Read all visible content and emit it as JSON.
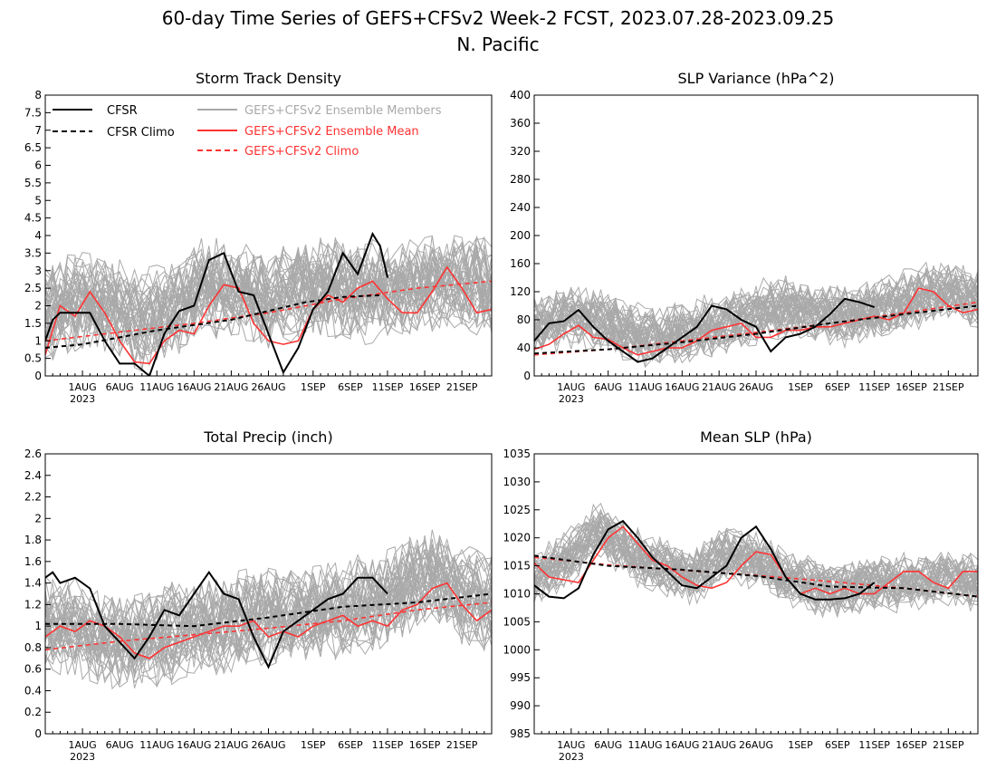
{
  "figure": {
    "title_line1": "60-day Time Series of GEFS+CFSv2 Week-2 FCST, 2023.07.28-2023.09.25",
    "title_line2": "N. Pacific"
  },
  "legend": {
    "cfsr": "CFSR",
    "cfsr_climo": "CFSR Climo",
    "ens_members": "GEFS+CFSv2 Ensemble Members",
    "ens_mean": "GEFS+CFSv2 Ensemble Mean",
    "ens_climo": "GEFS+CFSv2 Climo"
  },
  "colors": {
    "cfsr": "#000000",
    "cfsr_climo": "#000000",
    "ens_members": "#a9a9a9",
    "ens_mean": "#ff3333",
    "ens_climo": "#ff3333"
  },
  "x_axis": {
    "ticks": [
      {
        "label": "1AUG",
        "x": 5
      },
      {
        "label": "6AUG",
        "x": 10
      },
      {
        "label": "11AUG",
        "x": 15
      },
      {
        "label": "16AUG",
        "x": 20
      },
      {
        "label": "21AUG",
        "x": 25
      },
      {
        "label": "26AUG",
        "x": 30
      },
      {
        "label": "1SEP",
        "x": 36
      },
      {
        "label": "6SEP",
        "x": 41
      },
      {
        "label": "11SEP",
        "x": 46
      },
      {
        "label": "16SEP",
        "x": 51
      },
      {
        "label": "21SEP",
        "x": 56
      }
    ],
    "year_label": "2023"
  },
  "chart_data": [
    {
      "type": "line",
      "title": "Storm Track Density",
      "ylim": [
        0,
        8
      ],
      "yticks": [
        "0",
        "0.5",
        "1",
        "1.5",
        "2",
        "2.5",
        "3",
        "3.5",
        "4",
        "4.5",
        "5",
        "5.5",
        "6",
        "6.5",
        "7",
        "7.5",
        "8"
      ],
      "ytick_values": [
        0,
        0.5,
        1,
        1.5,
        2,
        2.5,
        3,
        3.5,
        4,
        4.5,
        5,
        5.5,
        6,
        6.5,
        7,
        7.5,
        8
      ],
      "xlim": [
        0,
        60
      ],
      "series": [
        {
          "name": "CFSR",
          "x": [
            0,
            1,
            2,
            4,
            6,
            8,
            10,
            12,
            14,
            16,
            18,
            20,
            22,
            24,
            26,
            28,
            30,
            32,
            34,
            36,
            38,
            40,
            42,
            44,
            45,
            46
          ],
          "y": [
            1.0,
            1.6,
            1.8,
            1.8,
            1.8,
            1.0,
            0.35,
            0.35,
            0.0,
            1.2,
            1.85,
            2.0,
            3.3,
            3.5,
            2.4,
            2.3,
            1.2,
            0.1,
            0.8,
            1.9,
            2.4,
            3.5,
            2.9,
            4.05,
            3.7,
            2.8
          ]
        },
        {
          "name": "CFSR Climo",
          "x": [
            0,
            5,
            10,
            15,
            20,
            25,
            30,
            35,
            40,
            45
          ],
          "y": [
            0.8,
            0.9,
            1.1,
            1.3,
            1.45,
            1.6,
            1.85,
            2.1,
            2.25,
            2.3
          ]
        },
        {
          "name": "GEFS+CFSv2 Ensemble Mean",
          "x": [
            0,
            2,
            4,
            6,
            8,
            10,
            12,
            14,
            16,
            18,
            20,
            22,
            24,
            26,
            28,
            30,
            32,
            34,
            36,
            38,
            40,
            42,
            44,
            46,
            48,
            50,
            52,
            54,
            56,
            58,
            60
          ],
          "y": [
            0.6,
            2.0,
            1.7,
            2.4,
            1.8,
            1.0,
            0.4,
            0.35,
            1.0,
            1.3,
            1.2,
            2.0,
            2.6,
            2.5,
            1.5,
            1.0,
            0.9,
            1.0,
            1.9,
            2.3,
            2.1,
            2.5,
            2.7,
            2.2,
            1.8,
            1.8,
            2.4,
            3.1,
            2.5,
            1.8,
            1.9
          ]
        },
        {
          "name": "GEFS+CFSv2 Climo",
          "x": [
            0,
            10,
            20,
            30,
            40,
            50,
            60
          ],
          "y": [
            1.0,
            1.25,
            1.5,
            1.8,
            2.2,
            2.5,
            2.7
          ]
        }
      ],
      "member_spread": {
        "center": [
          1.8,
          2.2,
          2.0,
          1.6,
          2.0,
          2.6,
          2.4,
          2.2,
          2.5,
          2.6,
          2.4,
          2.5,
          2.6,
          2.7,
          2.5
        ],
        "half_width": 1.4
      }
    },
    {
      "type": "line",
      "title": "SLP Variance (hPa^2)",
      "ylim": [
        0,
        400
      ],
      "yticks": [
        "0",
        "40",
        "80",
        "120",
        "160",
        "200",
        "240",
        "280",
        "320",
        "360",
        "400"
      ],
      "ytick_values": [
        0,
        40,
        80,
        120,
        160,
        200,
        240,
        280,
        320,
        360,
        400
      ],
      "xlim": [
        0,
        60
      ],
      "series": [
        {
          "name": "CFSR",
          "x": [
            0,
            2,
            4,
            6,
            8,
            10,
            12,
            14,
            16,
            18,
            20,
            22,
            24,
            26,
            28,
            30,
            32,
            34,
            36,
            38,
            40,
            42,
            44,
            46
          ],
          "y": [
            50,
            75,
            78,
            94,
            70,
            50,
            35,
            20,
            25,
            40,
            55,
            70,
            100,
            95,
            80,
            70,
            35,
            55,
            60,
            70,
            88,
            110,
            105,
            98
          ]
        },
        {
          "name": "CFSR Climo",
          "x": [
            0,
            10,
            20,
            30,
            40,
            50,
            60
          ],
          "y": [
            32,
            38,
            48,
            60,
            75,
            88,
            100
          ]
        },
        {
          "name": "GEFS+CFSv2 Ensemble Mean",
          "x": [
            0,
            2,
            4,
            6,
            8,
            10,
            12,
            14,
            16,
            18,
            20,
            22,
            24,
            26,
            28,
            30,
            32,
            34,
            36,
            38,
            40,
            42,
            44,
            46,
            48,
            50,
            52,
            54,
            56,
            58,
            60
          ],
          "y": [
            38,
            45,
            60,
            72,
            55,
            52,
            40,
            30,
            35,
            40,
            40,
            50,
            65,
            70,
            75,
            55,
            55,
            65,
            65,
            70,
            70,
            75,
            80,
            85,
            80,
            90,
            125,
            120,
            100,
            90,
            95
          ]
        },
        {
          "name": "GEFS+CFSv2 Climo",
          "x": [
            0,
            10,
            20,
            30,
            40,
            50,
            60
          ],
          "y": [
            30,
            38,
            50,
            62,
            75,
            90,
            105
          ]
        }
      ],
      "member_spread": {
        "center": [
          70,
          85,
          80,
          60,
          55,
          65,
          75,
          90,
          95,
          90,
          85,
          95,
          110,
          120,
          110
        ],
        "half_width": 45
      }
    },
    {
      "type": "line",
      "title": "Total Precip (inch)",
      "ylim": [
        0,
        2.6
      ],
      "yticks": [
        "0",
        "0.2",
        "0.4",
        "0.6",
        "0.8",
        "1",
        "1.2",
        "1.4",
        "1.6",
        "1.8",
        "2",
        "2.2",
        "2.4",
        "2.6"
      ],
      "ytick_values": [
        0,
        0.2,
        0.4,
        0.6,
        0.8,
        1,
        1.2,
        1.4,
        1.6,
        1.8,
        2,
        2.2,
        2.4,
        2.6
      ],
      "xlim": [
        0,
        60
      ],
      "series": [
        {
          "name": "CFSR",
          "x": [
            0,
            1,
            2,
            4,
            6,
            8,
            10,
            12,
            14,
            16,
            18,
            20,
            22,
            24,
            26,
            28,
            30,
            32,
            34,
            36,
            38,
            40,
            42,
            44,
            46
          ],
          "y": [
            1.45,
            1.5,
            1.4,
            1.45,
            1.35,
            1.0,
            0.85,
            0.7,
            0.9,
            1.15,
            1.1,
            1.3,
            1.5,
            1.3,
            1.25,
            0.9,
            0.62,
            0.95,
            1.05,
            1.15,
            1.25,
            1.3,
            1.45,
            1.45,
            1.3
          ]
        },
        {
          "name": "CFSR Climo",
          "x": [
            0,
            10,
            20,
            30,
            40,
            50,
            60
          ],
          "y": [
            1.02,
            1.02,
            1.0,
            1.08,
            1.18,
            1.22,
            1.3
          ]
        },
        {
          "name": "GEFS+CFSv2 Ensemble Mean",
          "x": [
            0,
            2,
            4,
            6,
            8,
            10,
            12,
            14,
            16,
            18,
            20,
            22,
            24,
            26,
            28,
            30,
            32,
            34,
            36,
            38,
            40,
            42,
            44,
            46,
            48,
            50,
            52,
            54,
            56,
            58,
            60
          ],
          "y": [
            0.9,
            1.0,
            0.95,
            1.05,
            1.0,
            0.9,
            0.75,
            0.7,
            0.8,
            0.85,
            0.9,
            0.95,
            1.0,
            1.0,
            1.05,
            0.9,
            0.95,
            0.9,
            1.0,
            1.05,
            1.1,
            1.0,
            1.05,
            1.0,
            1.15,
            1.2,
            1.35,
            1.4,
            1.2,
            1.05,
            1.15
          ]
        },
        {
          "name": "GEFS+CFSv2 Climo",
          "x": [
            0,
            10,
            20,
            30,
            40,
            50,
            60
          ],
          "y": [
            0.78,
            0.86,
            0.92,
            0.98,
            1.05,
            1.15,
            1.22
          ]
        }
      ],
      "member_spread": {
        "center": [
          1.0,
          1.0,
          0.85,
          0.85,
          0.95,
          1.0,
          1.05,
          1.1,
          1.1,
          1.15,
          1.2,
          1.3,
          1.5,
          1.3,
          1.2
        ],
        "half_width": 0.45
      }
    },
    {
      "type": "line",
      "title": "Mean SLP (hPa)",
      "ylim": [
        985,
        1035
      ],
      "yticks": [
        "985",
        "990",
        "995",
        "1000",
        "1005",
        "1010",
        "1015",
        "1020",
        "1025",
        "1030",
        "1035"
      ],
      "ytick_values": [
        985,
        990,
        995,
        1000,
        1005,
        1010,
        1015,
        1020,
        1025,
        1030,
        1035
      ],
      "xlim": [
        0,
        60
      ],
      "series": [
        {
          "name": "CFSR",
          "x": [
            0,
            2,
            4,
            6,
            8,
            10,
            12,
            14,
            16,
            18,
            20,
            22,
            24,
            26,
            28,
            30,
            32,
            34,
            36,
            38,
            40,
            42,
            44,
            46
          ],
          "y": [
            1011.5,
            1009.5,
            1009.2,
            1011,
            1017,
            1021.5,
            1023,
            1020,
            1016.5,
            1014,
            1011.5,
            1011,
            1013,
            1015,
            1020,
            1022,
            1018,
            1013,
            1010,
            1009,
            1009,
            1009.2,
            1010,
            1012
          ]
        },
        {
          "name": "CFSR Climo",
          "x": [
            0,
            10,
            20,
            30,
            40,
            50,
            60
          ],
          "y": [
            1016.8,
            1015,
            1014.3,
            1013.2,
            1011.3,
            1011,
            1009.5
          ]
        },
        {
          "name": "GEFS+CFSv2 Ensemble Mean",
          "x": [
            0,
            2,
            4,
            6,
            8,
            10,
            12,
            14,
            16,
            18,
            20,
            22,
            24,
            26,
            28,
            30,
            32,
            34,
            36,
            38,
            40,
            42,
            44,
            46,
            48,
            50,
            52,
            54,
            56,
            58,
            60
          ],
          "y": [
            1015.5,
            1013,
            1012.5,
            1012,
            1016,
            1020,
            1022,
            1019,
            1016,
            1015,
            1013,
            1011.5,
            1011,
            1012,
            1015,
            1017.5,
            1017,
            1013,
            1010,
            1011,
            1010,
            1011,
            1010,
            1010,
            1012,
            1014,
            1014,
            1012,
            1011,
            1014,
            1014
          ]
        },
        {
          "name": "GEFS+CFSv2 Climo",
          "x": [
            0,
            10,
            20,
            30,
            40,
            50,
            60
          ],
          "y": [
            1016.5,
            1015.2,
            1014.2,
            1013.3,
            1012.2,
            1011,
            1009.5
          ]
        }
      ],
      "member_spread": {
        "center": [
          1013,
          1016,
          1022,
          1017,
          1015,
          1013,
          1017,
          1016,
          1013,
          1011,
          1011,
          1012,
          1012,
          1013,
          1012
        ],
        "half_width": 5
      }
    }
  ]
}
